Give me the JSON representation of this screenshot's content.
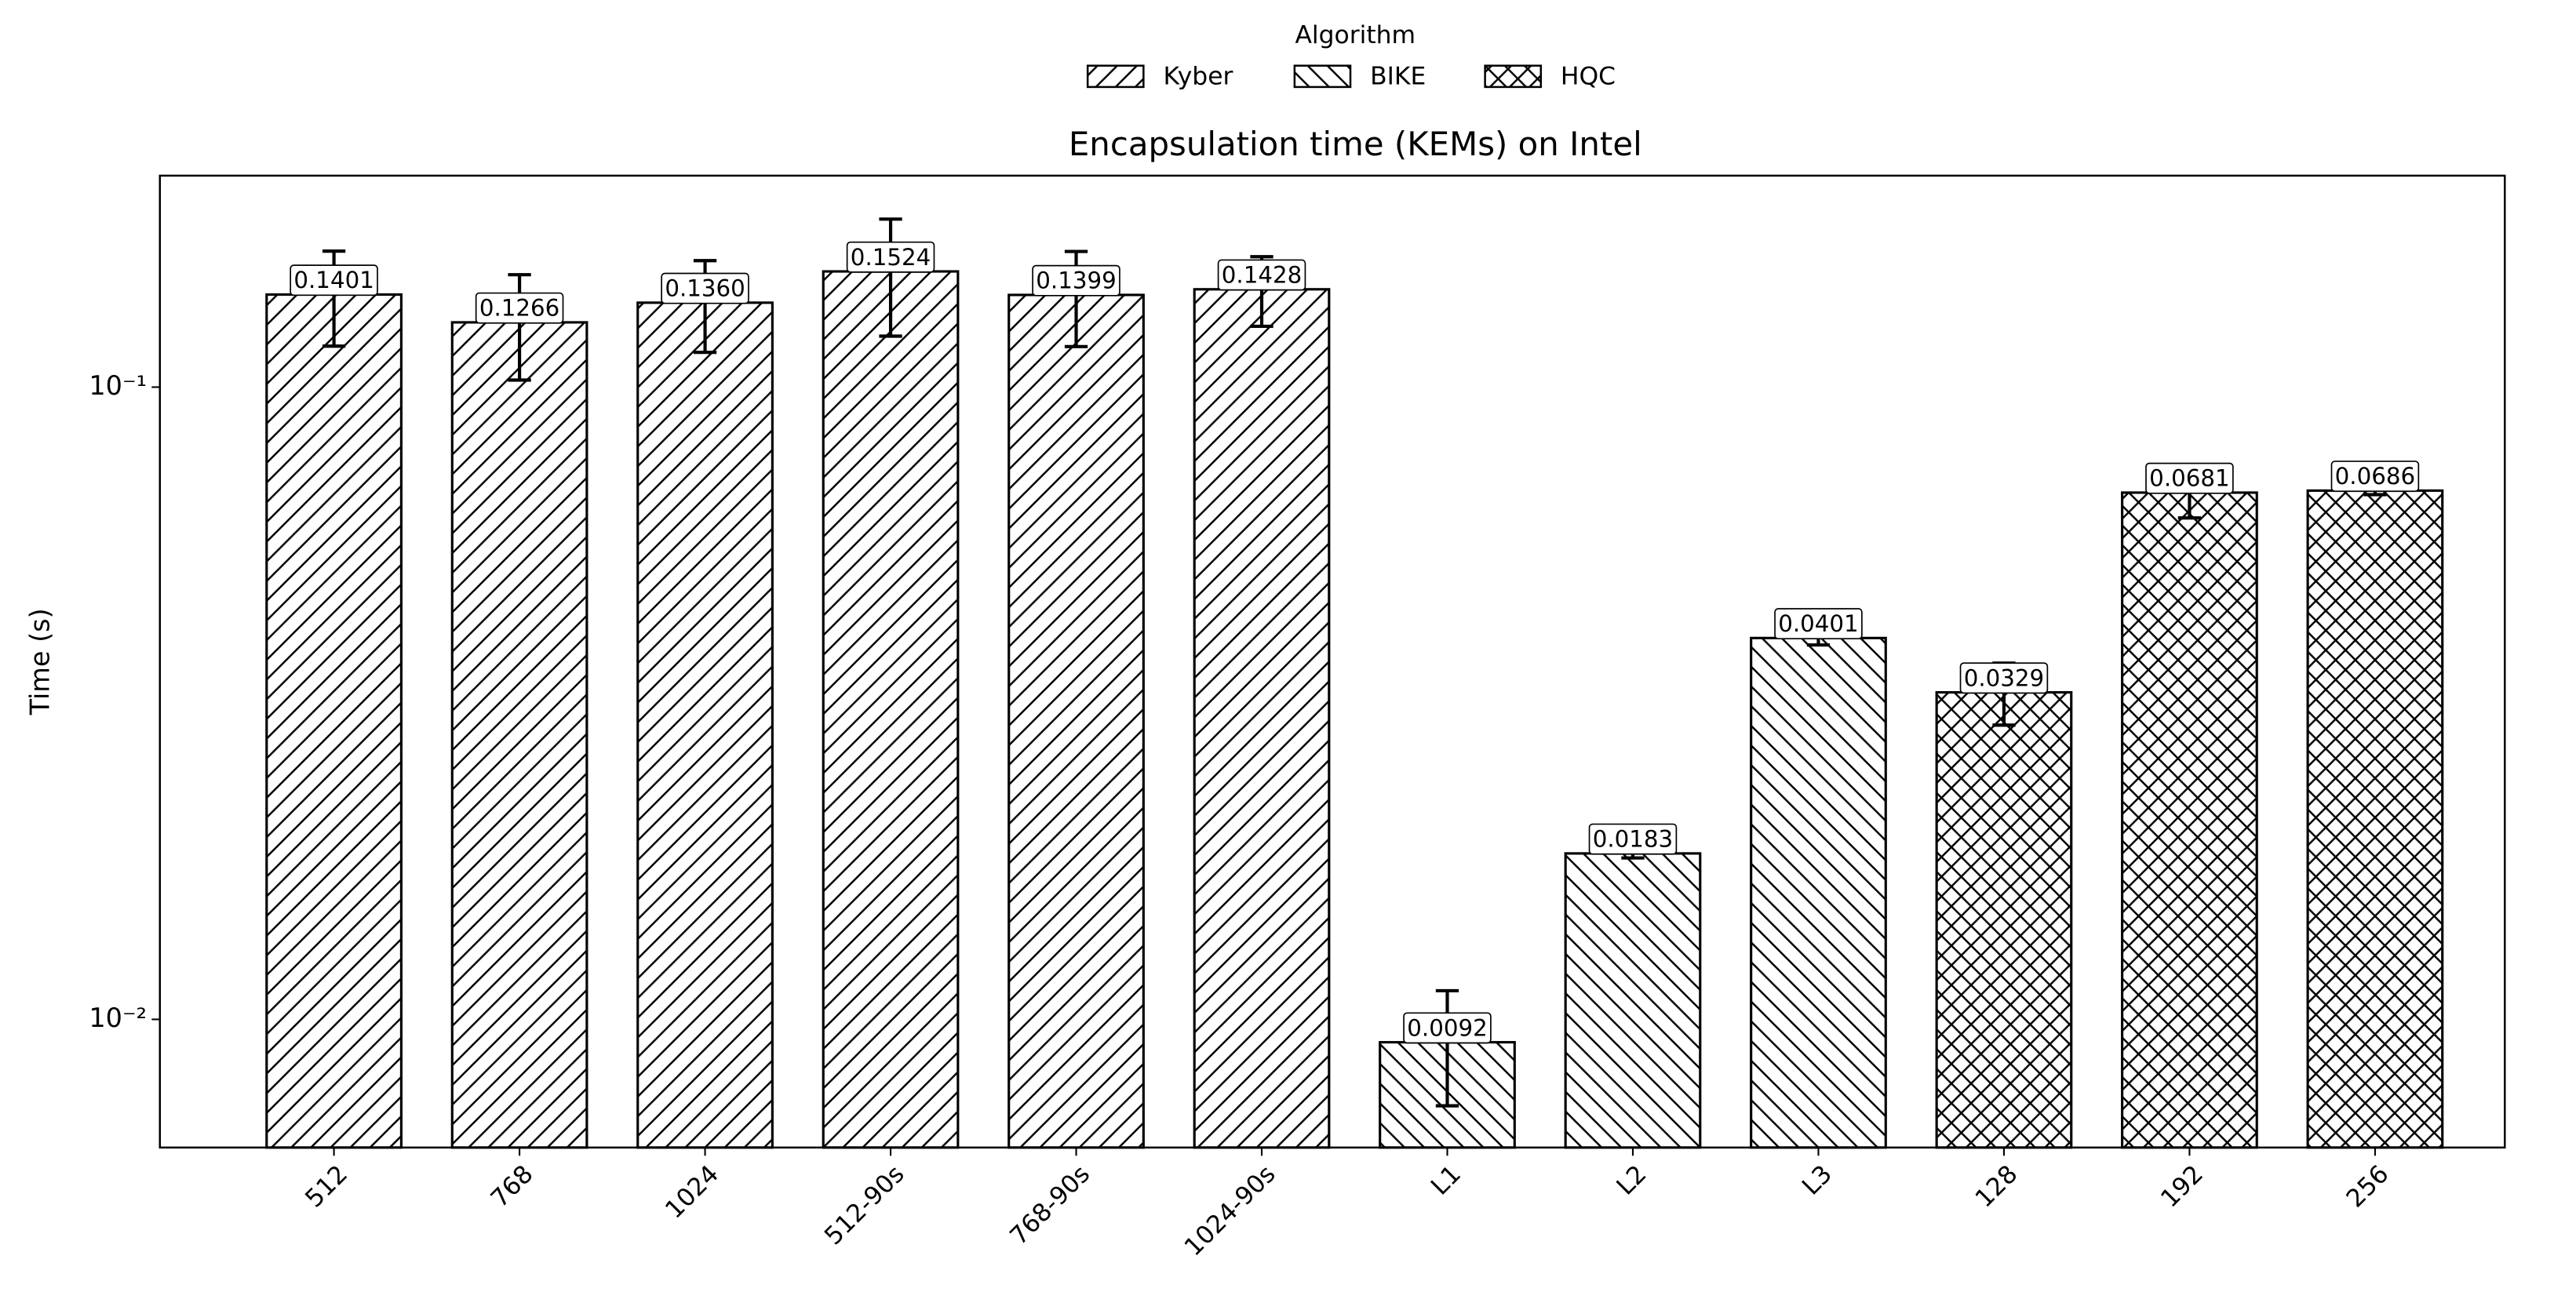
{
  "chart_data": {
    "type": "bar",
    "title": "Encapsulation time (KEMs) on Intel",
    "y_label": "Time (s)",
    "y_scale": "log",
    "legend_title": "Algorithm",
    "legend_position": "upper center",
    "categories": [
      "512",
      "768",
      "1024",
      "512-90s",
      "768-90s",
      "1024-90s",
      "L1",
      "L2",
      "L3",
      "128",
      "192",
      "256"
    ],
    "series": [
      {
        "name": "Kyber",
        "color": "#ffffff",
        "edgecolor": "#000000",
        "hatch": "//",
        "values": [
          0.1401,
          0.1266,
          0.136,
          0.1524,
          0.1399,
          0.1428,
          null,
          null,
          null,
          null,
          null,
          null
        ],
        "value_labels": [
          "0.1401",
          "0.1266",
          "0.1360",
          "0.1524",
          "0.1399",
          "0.1428",
          null,
          null,
          null,
          null,
          null,
          null
        ],
        "errors": [
          0.024,
          0.024,
          0.0225,
          0.032,
          0.024,
          0.018,
          null,
          null,
          null,
          null,
          null,
          null
        ]
      },
      {
        "name": "BIKE",
        "color": "#ffffff",
        "edgecolor": "#000000",
        "hatch": "\\\\",
        "values": [
          null,
          null,
          null,
          null,
          null,
          null,
          0.0092,
          0.0183,
          0.0401,
          null,
          null,
          null
        ],
        "value_labels": [
          null,
          null,
          null,
          null,
          null,
          null,
          "0.0092",
          "0.0183",
          "0.0401",
          null,
          null,
          null
        ],
        "errors": [
          null,
          null,
          null,
          null,
          null,
          null,
          0.0019,
          0.0003,
          0.001,
          null,
          null,
          null
        ]
      },
      {
        "name": "HQC",
        "color": "#ffffff",
        "edgecolor": "#000000",
        "hatch": "xx",
        "values": [
          null,
          null,
          null,
          null,
          null,
          null,
          null,
          null,
          null,
          0.0329,
          0.0681,
          0.0686
        ],
        "value_labels": [
          null,
          null,
          null,
          null,
          null,
          null,
          null,
          null,
          null,
          "0.0329",
          "0.0681",
          "0.0686"
        ],
        "errors": [
          null,
          null,
          null,
          null,
          null,
          null,
          null,
          null,
          null,
          0.0037,
          0.006,
          0.001
        ]
      }
    ],
    "ylim": [
      0.00627,
      0.216
    ],
    "yticks": [
      {
        "value": 0.01,
        "label": "10⁻²"
      },
      {
        "value": 0.1,
        "label": "10⁻¹"
      }
    ]
  }
}
